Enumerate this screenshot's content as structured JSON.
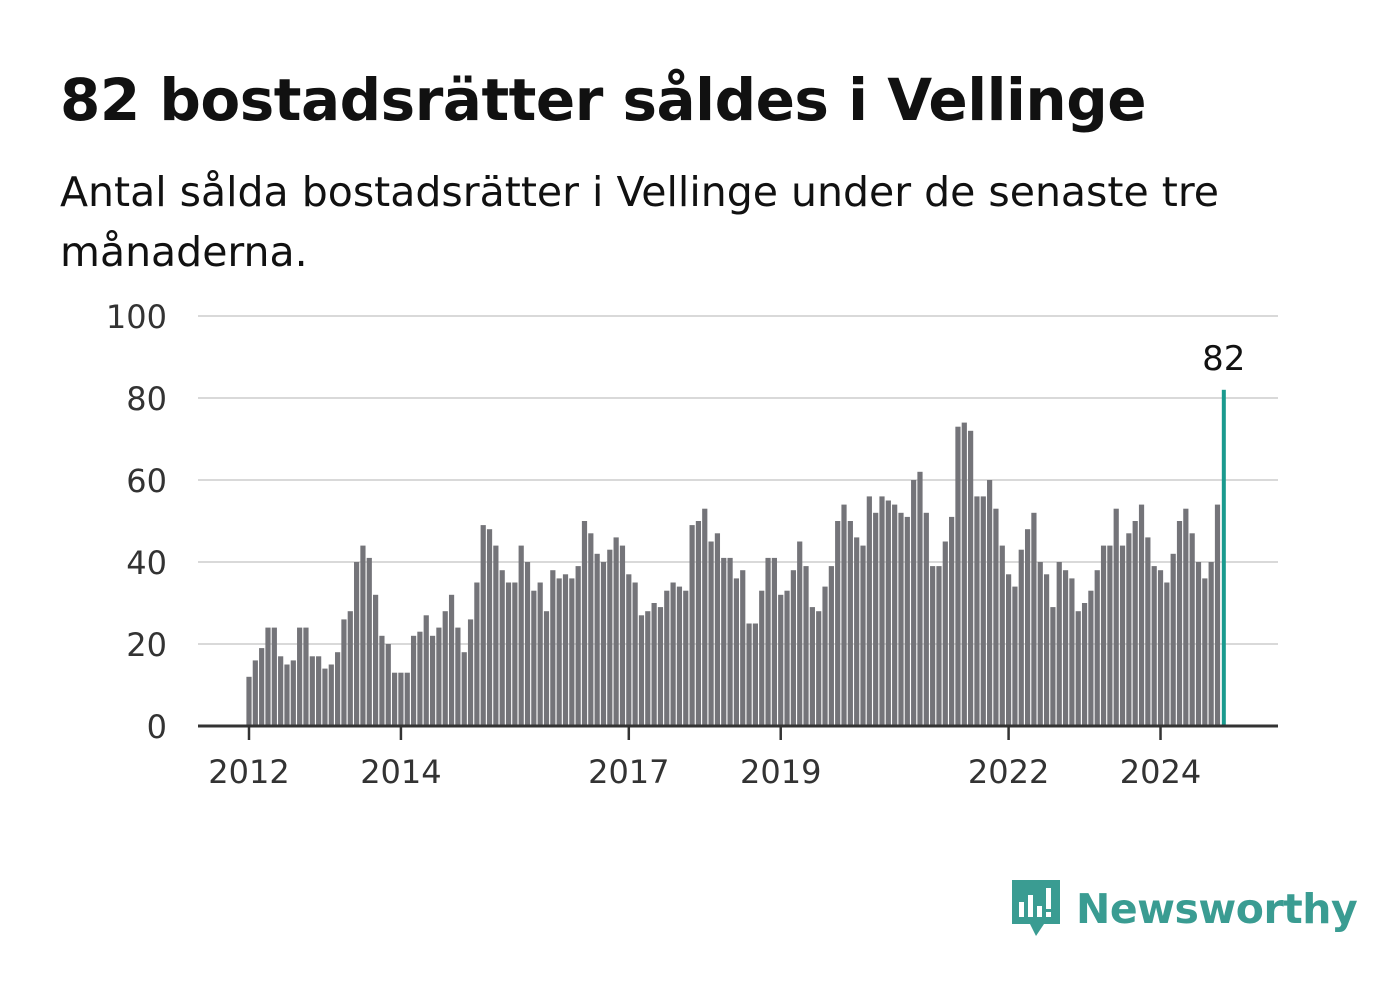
{
  "title": "82 bostadsrätter såldes i Vellinge",
  "subtitle": "Antal sålda bostadsrätter i Vellinge under de senaste tre månaderna.",
  "brand": {
    "name": "Newsworthy",
    "color": "#3a9c92",
    "icon": "newsworthy-logo-icon"
  },
  "chart_data": {
    "type": "bar",
    "title": "82 bostadsrätter såldes i Vellinge",
    "subtitle": "Antal sålda bostadsrätter i Vellinge under de senaste tre månaderna.",
    "ylim": [
      0,
      100
    ],
    "y_ticks": [
      0,
      20,
      40,
      60,
      80,
      100
    ],
    "x_ticks": [
      "2012",
      "2014",
      "2017",
      "2019",
      "2022",
      "2024"
    ],
    "x_tick_months": [
      "2012-01",
      "2014-01",
      "2017-01",
      "2019-01",
      "2022-01",
      "2024-01"
    ],
    "grid": true,
    "bar_color": "#747479",
    "highlight_color": "#1a9a8e",
    "highlight_label": "82",
    "start_month": "2012-01",
    "values": [
      12,
      16,
      19,
      24,
      24,
      17,
      15,
      16,
      24,
      24,
      17,
      17,
      14,
      15,
      18,
      26,
      28,
      40,
      44,
      41,
      32,
      22,
      20,
      13,
      13,
      13,
      22,
      23,
      27,
      22,
      24,
      28,
      32,
      24,
      18,
      26,
      35,
      49,
      48,
      44,
      38,
      35,
      35,
      44,
      40,
      33,
      35,
      28,
      38,
      36,
      37,
      36,
      39,
      50,
      47,
      42,
      40,
      43,
      46,
      44,
      37,
      35,
      27,
      28,
      30,
      29,
      33,
      35,
      34,
      33,
      49,
      50,
      53,
      45,
      47,
      41,
      41,
      36,
      38,
      25,
      25,
      33,
      41,
      41,
      32,
      33,
      38,
      45,
      39,
      29,
      28,
      34,
      39,
      50,
      54,
      50,
      46,
      44,
      56,
      52,
      56,
      55,
      54,
      52,
      51,
      60,
      62,
      52,
      39,
      39,
      45,
      51,
      73,
      74,
      72,
      56,
      56,
      60,
      53,
      44,
      37,
      34,
      43,
      48,
      52,
      40,
      37,
      29,
      40,
      38,
      36,
      28,
      30,
      33,
      38,
      44,
      44,
      53,
      44,
      47,
      50,
      54,
      46,
      39,
      38,
      35,
      42,
      50,
      53,
      47,
      40,
      36,
      40,
      54,
      82
    ]
  }
}
